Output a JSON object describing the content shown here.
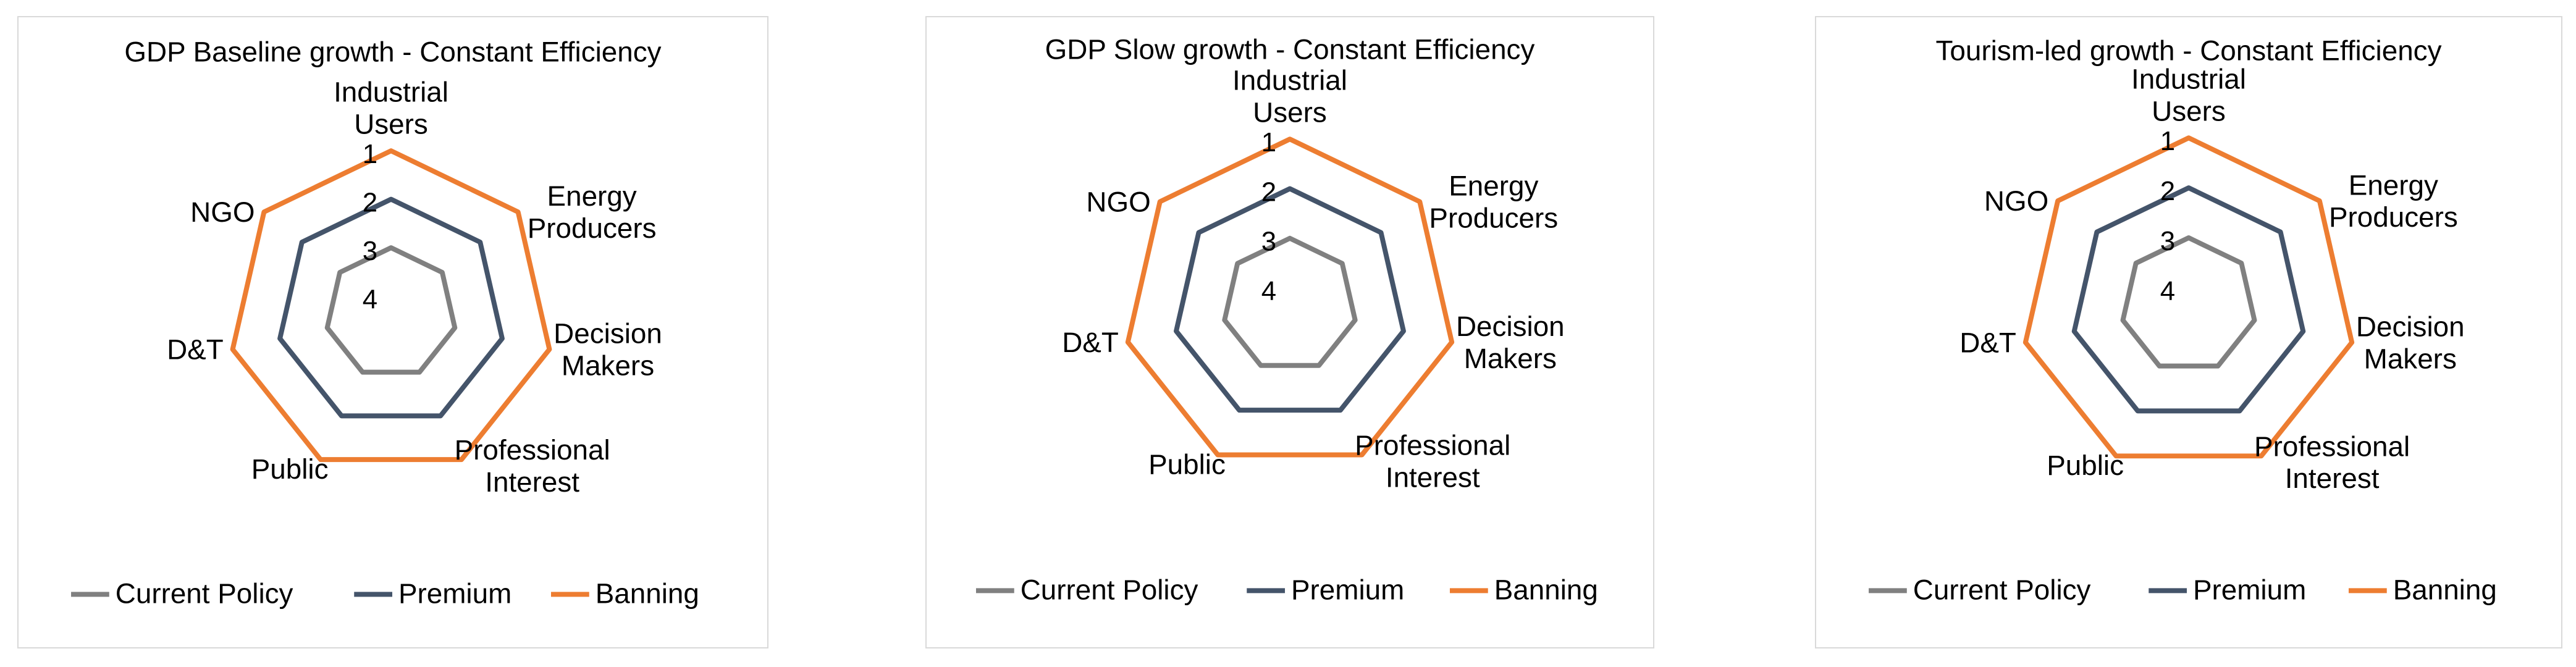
{
  "series_colors": {
    "Current Policy": "#808080",
    "Premium": "#44546a",
    "Banning": "#ed7d31"
  },
  "chart_data": [
    {
      "type": "radar",
      "title": "GDP Baseline growth - Constant Efficiency",
      "axes": [
        "Industrial Users",
        "Energy Producers",
        "Decision Makers",
        "Professional Interest",
        "Public",
        "D&T",
        "NGO"
      ],
      "rank_ticks": [
        1,
        2,
        3,
        4
      ],
      "range": [
        1,
        4
      ],
      "reversed": true,
      "series": [
        {
          "name": "Current Policy",
          "values": [
            3,
            3,
            3,
            3,
            3,
            3,
            3
          ]
        },
        {
          "name": "Premium",
          "values": [
            2,
            2,
            2,
            2,
            2,
            2,
            2
          ]
        },
        {
          "name": "Banning",
          "values": [
            1,
            1,
            1,
            1,
            1,
            1,
            1
          ]
        }
      ],
      "legend": [
        "Current Policy",
        "Premium",
        "Banning"
      ],
      "legend_position": "bottom"
    },
    {
      "type": "radar",
      "title": "GDP Slow growth - Constant Efficiency",
      "axes": [
        "Industrial Users",
        "Energy Producers",
        "Decision Makers",
        "Professional Interest",
        "Public",
        "D&T",
        "NGO"
      ],
      "rank_ticks": [
        1,
        2,
        3,
        4
      ],
      "range": [
        1,
        4
      ],
      "reversed": true,
      "series": [
        {
          "name": "Current Policy",
          "values": [
            3,
            3,
            3,
            3,
            3,
            3,
            3
          ]
        },
        {
          "name": "Premium",
          "values": [
            2,
            2,
            2,
            2,
            2,
            2,
            2
          ]
        },
        {
          "name": "Banning",
          "values": [
            1,
            1,
            1,
            1,
            1,
            1,
            1
          ]
        }
      ],
      "legend": [
        "Current Policy",
        "Premium",
        "Banning"
      ],
      "legend_position": "bottom"
    },
    {
      "type": "radar",
      "title": "Tourism-led growth - Constant Efficiency",
      "axes": [
        "Industrial Users",
        "Energy Producers",
        "Decision Makers",
        "Professional Interest",
        "Public",
        "D&T",
        "NGO"
      ],
      "rank_ticks": [
        1,
        2,
        3,
        4
      ],
      "range": [
        1,
        4
      ],
      "reversed": true,
      "series": [
        {
          "name": "Current Policy",
          "values": [
            3,
            3,
            3,
            3,
            3,
            3,
            3
          ]
        },
        {
          "name": "Premium",
          "values": [
            2,
            2,
            2,
            2,
            2,
            2,
            2
          ]
        },
        {
          "name": "Banning",
          "values": [
            1,
            1,
            1,
            1,
            1,
            1,
            1
          ]
        }
      ],
      "legend": [
        "Current Policy",
        "Premium",
        "Banning"
      ],
      "legend_position": "bottom"
    }
  ]
}
